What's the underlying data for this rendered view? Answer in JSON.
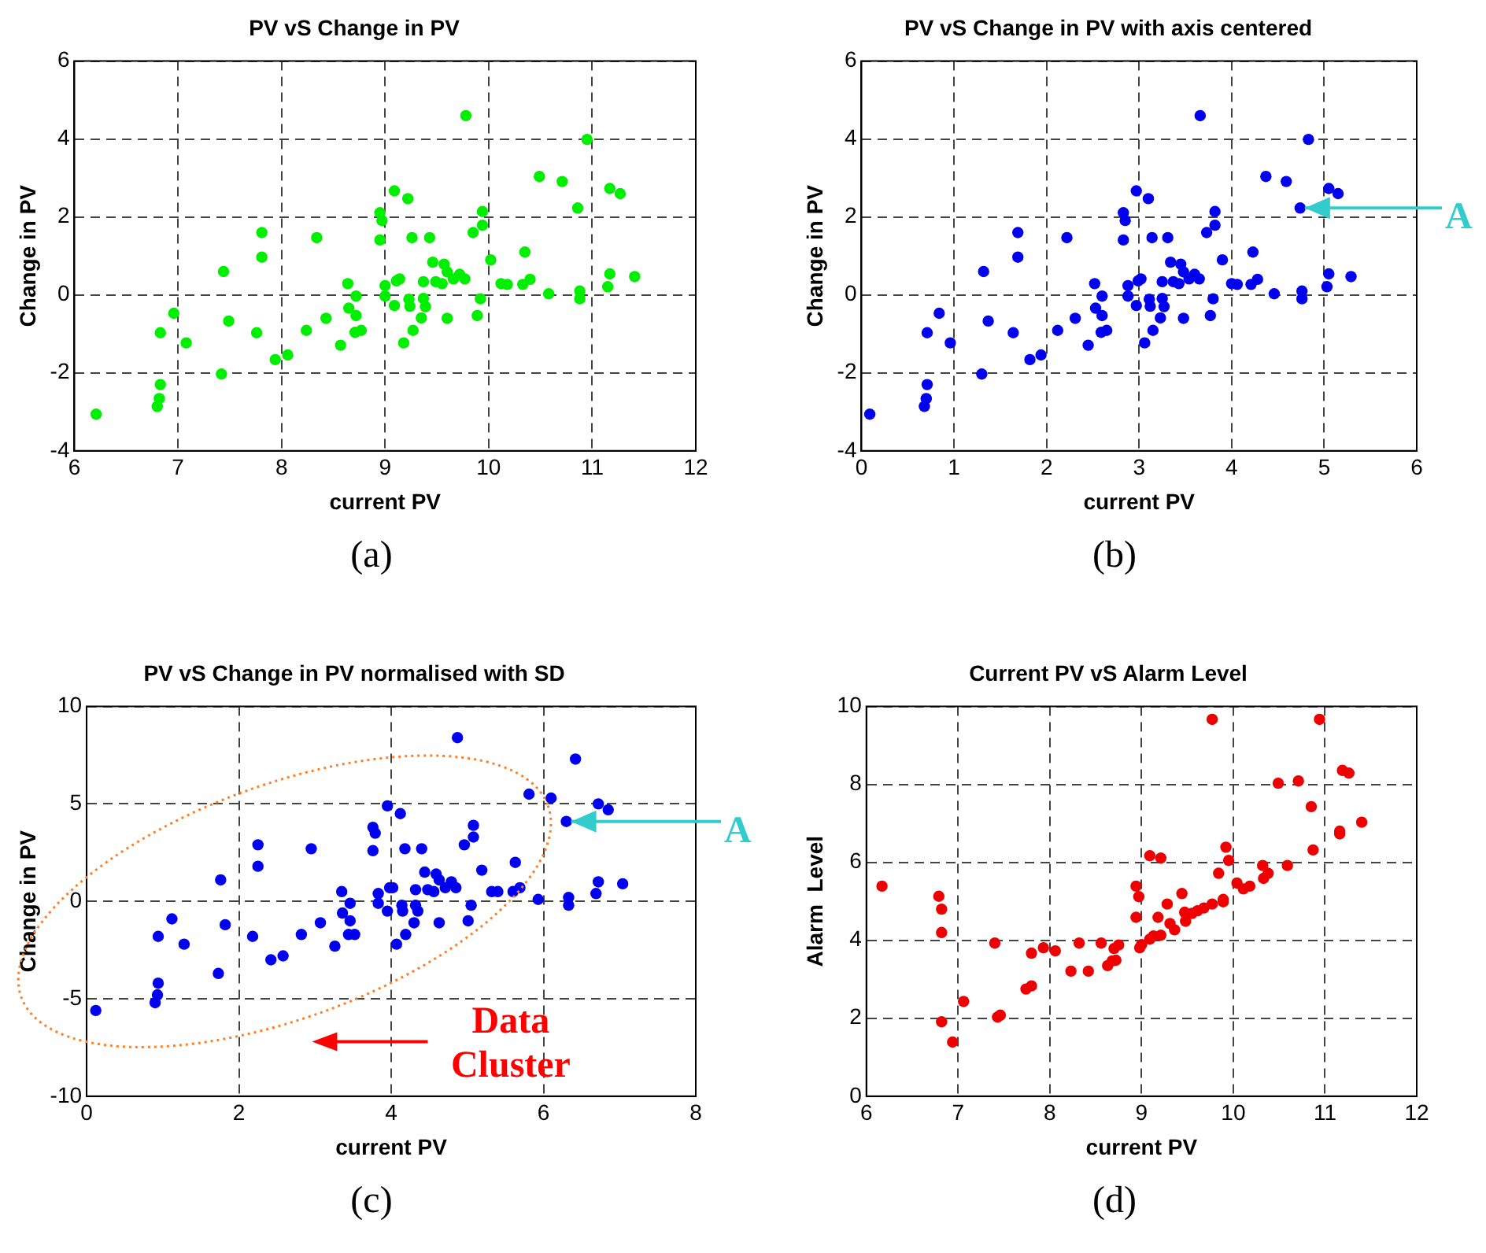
{
  "chart_data": [
    {
      "type": "scatter",
      "title": "PV vS Change in PV",
      "xlabel": "current PV",
      "ylabel": "Change in PV",
      "color": "#00ee00",
      "marker": "circle",
      "grid": true,
      "xlim": [
        6,
        12
      ],
      "xticks": [
        6,
        7,
        8,
        9,
        10,
        11,
        12
      ],
      "ylim": [
        -4,
        6
      ],
      "yticks": [
        -4,
        -2,
        0,
        2,
        4,
        6
      ],
      "x": [
        6.21,
        6.8,
        6.82,
        6.83,
        6.83,
        6.96,
        7.08,
        7.42,
        7.44,
        7.49,
        7.76,
        7.81,
        7.81,
        7.94,
        8.06,
        8.24,
        8.34,
        8.43,
        8.57,
        8.64,
        8.65,
        8.72,
        8.72,
        8.71,
        8.77,
        8.95,
        8.95,
        8.97,
        9.0,
        9.0,
        9.09,
        9.09,
        9.11,
        9.14,
        9.18,
        9.22,
        9.23,
        9.24,
        9.26,
        9.27,
        9.35,
        9.37,
        9.37,
        9.39,
        9.43,
        9.46,
        9.49,
        9.55,
        9.57,
        9.6,
        9.6,
        9.66,
        9.72,
        9.77,
        9.78,
        9.85,
        9.89,
        9.92,
        9.94,
        9.94,
        10.02,
        10.12,
        10.18,
        10.33,
        10.35,
        10.4,
        10.49,
        10.58,
        10.71,
        10.86,
        10.88,
        10.88,
        10.95,
        11.15,
        11.17,
        11.17,
        11.27,
        11.41
      ],
      "values": [
        -3.06,
        -2.86,
        -2.66,
        -2.3,
        -0.97,
        -0.47,
        -1.23,
        -2.03,
        0.6,
        -0.67,
        -0.97,
        0.97,
        1.6,
        -1.66,
        -1.54,
        -0.91,
        1.47,
        -0.6,
        -1.29,
        0.29,
        -0.34,
        -0.03,
        -0.53,
        -0.96,
        -0.91,
        1.41,
        2.11,
        1.91,
        0.24,
        -0.03,
        2.67,
        -0.27,
        0.36,
        0.41,
        -1.23,
        2.47,
        -0.11,
        -0.29,
        1.47,
        -0.91,
        -0.59,
        0.34,
        -0.09,
        -0.3,
        1.47,
        0.84,
        0.34,
        0.29,
        0.79,
        -0.6,
        0.59,
        0.41,
        0.53,
        0.41,
        4.6,
        1.6,
        -0.53,
        -0.1,
        1.79,
        2.14,
        0.9,
        0.29,
        0.27,
        0.27,
        1.1,
        0.4,
        3.04,
        0.03,
        2.91,
        2.23,
        0.1,
        -0.1,
        3.99,
        0.21,
        2.73,
        0.54,
        2.6,
        0.47
      ],
      "annotations": [
        "(a)"
      ]
    },
    {
      "type": "scatter",
      "title": "PV vS Change in PV with axis centered",
      "xlabel": "current PV",
      "ylabel": "Change in PV",
      "color": "#0000ee",
      "marker": "circle",
      "grid": true,
      "xlim": [
        0,
        6
      ],
      "xticks": [
        0,
        1,
        2,
        3,
        4,
        5,
        6
      ],
      "ylim": [
        -4,
        6
      ],
      "yticks": [
        -4,
        -2,
        0,
        2,
        4,
        6
      ],
      "x": [
        0.09,
        0.68,
        0.7,
        0.71,
        0.71,
        0.84,
        0.96,
        1.3,
        1.32,
        1.37,
        1.64,
        1.69,
        1.69,
        1.82,
        1.94,
        2.12,
        2.22,
        2.31,
        2.45,
        2.52,
        2.53,
        2.6,
        2.6,
        2.59,
        2.65,
        2.83,
        2.83,
        2.85,
        2.88,
        2.88,
        2.97,
        2.97,
        2.99,
        3.02,
        3.06,
        3.1,
        3.11,
        3.12,
        3.14,
        3.15,
        3.23,
        3.25,
        3.25,
        3.27,
        3.31,
        3.34,
        3.37,
        3.43,
        3.45,
        3.48,
        3.48,
        3.54,
        3.6,
        3.65,
        3.66,
        3.73,
        3.77,
        3.8,
        3.82,
        3.82,
        3.9,
        4.0,
        4.06,
        4.21,
        4.23,
        4.28,
        4.37,
        4.46,
        4.59,
        4.74,
        4.76,
        4.76,
        4.83,
        5.03,
        5.05,
        5.05,
        5.15,
        5.29
      ],
      "values": [
        -3.06,
        -2.86,
        -2.66,
        -2.3,
        -0.97,
        -0.47,
        -1.23,
        -2.03,
        0.6,
        -0.67,
        -0.97,
        0.97,
        1.6,
        -1.66,
        -1.54,
        -0.91,
        1.47,
        -0.6,
        -1.29,
        0.29,
        -0.34,
        -0.03,
        -0.53,
        -0.96,
        -0.91,
        1.41,
        2.11,
        1.91,
        0.24,
        -0.03,
        2.67,
        -0.27,
        0.36,
        0.41,
        -1.23,
        2.47,
        -0.11,
        -0.29,
        1.47,
        -0.91,
        -0.59,
        0.34,
        -0.09,
        -0.3,
        1.47,
        0.84,
        0.34,
        0.29,
        0.79,
        -0.6,
        0.59,
        0.41,
        0.53,
        0.41,
        4.6,
        1.6,
        -0.53,
        -0.1,
        1.79,
        2.14,
        0.9,
        0.29,
        0.27,
        0.27,
        1.1,
        0.4,
        3.04,
        0.03,
        2.91,
        2.23,
        0.1,
        -0.1,
        3.99,
        0.21,
        2.73,
        0.54,
        2.6,
        0.47
      ],
      "annotations": [
        "(b)",
        {
          "text": "A",
          "x": 4.74,
          "y": 2.23
        }
      ]
    },
    {
      "type": "scatter",
      "title": "PV vS Change in PV normalised with SD",
      "xlabel": "current PV",
      "ylabel": "Change in PV",
      "color": "#0000ee",
      "marker": "circle",
      "grid": true,
      "xlim": [
        0,
        8
      ],
      "xticks": [
        0,
        2,
        4,
        6,
        8
      ],
      "ylim": [
        -10,
        10
      ],
      "yticks": [
        -10,
        -5,
        0,
        5,
        10
      ],
      "x": [
        0.12,
        0.9,
        0.93,
        0.94,
        0.94,
        1.12,
        1.28,
        1.73,
        1.76,
        1.82,
        2.18,
        2.25,
        2.25,
        2.42,
        2.58,
        2.82,
        2.95,
        3.07,
        3.26,
        3.35,
        3.36,
        3.46,
        3.46,
        3.44,
        3.52,
        3.76,
        3.76,
        3.79,
        3.83,
        3.83,
        3.95,
        3.95,
        3.98,
        4.02,
        4.07,
        4.12,
        4.14,
        4.15,
        4.18,
        4.19,
        4.3,
        4.32,
        4.32,
        4.35,
        4.4,
        4.44,
        4.48,
        4.56,
        4.59,
        4.63,
        4.63,
        4.71,
        4.79,
        4.85,
        4.87,
        4.96,
        5.01,
        5.05,
        5.08,
        5.08,
        5.19,
        5.32,
        5.4,
        5.6,
        5.63,
        5.69,
        5.81,
        5.93,
        6.1,
        6.3,
        6.33,
        6.33,
        6.42,
        6.69,
        6.72,
        6.72,
        6.85,
        7.04
      ],
      "values": [
        -5.6,
        -5.2,
        -4.8,
        -4.2,
        -1.8,
        -0.9,
        -2.2,
        -3.7,
        1.1,
        -1.2,
        -1.8,
        1.8,
        2.9,
        -3.0,
        -2.8,
        -1.7,
        2.7,
        -1.1,
        -2.3,
        0.5,
        -0.6,
        -0.1,
        -1.0,
        -1.7,
        -1.7,
        2.6,
        3.8,
        3.5,
        0.4,
        -0.1,
        4.9,
        -0.5,
        0.7,
        0.7,
        -2.2,
        4.5,
        -0.2,
        -0.5,
        2.7,
        -1.7,
        -1.1,
        0.6,
        -0.2,
        -0.5,
        2.7,
        1.5,
        0.6,
        0.5,
        1.4,
        -1.1,
        1.1,
        0.7,
        1.0,
        0.7,
        8.4,
        2.9,
        -1.0,
        -0.2,
        3.3,
        3.9,
        1.6,
        0.5,
        0.5,
        0.5,
        2.0,
        0.7,
        5.5,
        0.1,
        5.3,
        4.1,
        0.2,
        -0.2,
        7.3,
        0.4,
        5.0,
        1.0,
        4.7,
        0.9
      ],
      "annotations": [
        "(c)",
        {
          "text": "A",
          "x": 6.3,
          "y": 4.1
        },
        "Data Cluster"
      ]
    },
    {
      "type": "scatter",
      "title": "Current PV vS Alarm Level",
      "xlabel": "current PV",
      "ylabel": "Alarm  Level",
      "color": "#ee0000",
      "marker": "circle",
      "grid": true,
      "xlim": [
        6,
        12
      ],
      "xticks": [
        6,
        7,
        8,
        9,
        10,
        11,
        12
      ],
      "ylim": [
        0,
        10
      ],
      "yticks": [
        0,
        2,
        4,
        6,
        8,
        10
      ],
      "x": [
        6.17,
        6.79,
        6.82,
        6.82,
        6.82,
        6.94,
        7.06,
        7.4,
        7.43,
        7.46,
        7.74,
        7.8,
        7.8,
        7.93,
        8.06,
        8.23,
        8.32,
        8.42,
        8.56,
        8.63,
        8.68,
        8.72,
        8.7,
        8.75,
        8.94,
        8.97,
        8.94,
        8.98,
        9.0,
        9.09,
        9.21,
        9.09,
        9.13,
        9.18,
        9.21,
        9.28,
        9.31,
        9.36,
        9.44,
        9.47,
        9.48,
        9.55,
        9.61,
        9.68,
        9.77,
        9.77,
        9.84,
        9.89,
        9.89,
        9.92,
        9.95,
        10.04,
        10.11,
        10.18,
        10.32,
        10.33,
        10.38,
        10.49,
        10.59,
        10.71,
        10.85,
        10.87,
        10.94,
        11.16,
        11.16,
        11.19,
        11.26,
        11.4
      ],
      "values": [
        5.39,
        5.13,
        4.8,
        4.2,
        1.91,
        1.39,
        2.43,
        3.93,
        2.03,
        2.08,
        2.75,
        2.83,
        3.67,
        3.81,
        3.73,
        3.21,
        3.93,
        3.21,
        3.93,
        3.35,
        3.47,
        3.49,
        3.79,
        3.88,
        5.39,
        5.12,
        4.59,
        3.81,
        3.89,
        6.17,
        6.11,
        4.03,
        4.11,
        4.59,
        4.13,
        4.93,
        4.43,
        4.27,
        5.2,
        4.72,
        4.49,
        4.69,
        4.76,
        4.83,
        4.93,
        9.67,
        5.72,
        5.05,
        4.99,
        6.39,
        6.05,
        5.47,
        5.32,
        5.39,
        5.92,
        5.59,
        5.72,
        8.03,
        5.92,
        8.09,
        7.43,
        6.32,
        9.67,
        6.73,
        6.8,
        8.36,
        8.29,
        7.03
      ],
      "annotations": [
        "(d)"
      ]
    }
  ]
}
